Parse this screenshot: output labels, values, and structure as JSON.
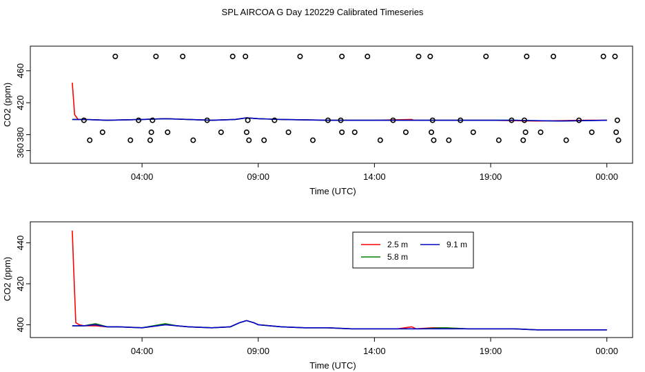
{
  "page": {
    "title": "SPL AIRCOA G  Day 120229  Calibrated Timeseries"
  },
  "chart_data": [
    {
      "id": "top",
      "type": "line",
      "title": "",
      "xlabel": "Time (UTC)",
      "ylabel": "CO2 (ppm)",
      "xlim": [
        0.1,
        24.2
      ],
      "ylim": [
        350,
        485
      ],
      "xticks": [
        4,
        9,
        14,
        19,
        24
      ],
      "xtick_labels": [
        "04:00",
        "09:00",
        "14:00",
        "19:00",
        "00:00"
      ],
      "yticks": [
        360,
        380,
        420,
        460
      ],
      "ytick_labels": [
        "360",
        "380",
        "420",
        "460"
      ],
      "series": [
        {
          "name": "2.5 m",
          "color": "#ff0000",
          "x": [
            1.0,
            1.1,
            1.25,
            1.5,
            2.5,
            4.0,
            5.0,
            6.0,
            7.0,
            8.0,
            8.5,
            9.0,
            10.0,
            12.0,
            14.0,
            15.6,
            15.7,
            15.8,
            17.0,
            19.0,
            21.0,
            23.0,
            24.0
          ],
          "y": [
            445,
            405,
            399,
            399,
            398,
            399,
            400,
            399,
            398,
            399,
            401,
            400,
            399,
            398,
            398,
            399,
            398,
            398,
            398,
            398,
            397,
            398,
            398
          ]
        },
        {
          "name": "5.8 m",
          "color": "#008000",
          "x": [
            1.0,
            1.5,
            2.5,
            4.0,
            5.0,
            6.0,
            7.0,
            8.0,
            8.5,
            9.0,
            10.0,
            12.0,
            14.0,
            16.0,
            18.0,
            20.0,
            22.0,
            24.0
          ],
          "y": [
            399,
            399,
            398,
            399,
            400,
            399,
            398,
            399,
            401,
            400,
            399,
            398,
            398,
            398,
            398,
            398,
            397,
            398
          ]
        },
        {
          "name": "9.1 m",
          "color": "#0000cc",
          "x": [
            1.0,
            1.5,
            2.5,
            4.0,
            5.0,
            6.0,
            7.0,
            8.0,
            8.5,
            9.0,
            10.0,
            12.0,
            14.0,
            16.0,
            18.0,
            20.0,
            22.0,
            24.0
          ],
          "y": [
            399,
            399,
            398,
            399,
            400,
            399,
            398,
            399,
            401,
            400,
            399,
            398,
            398,
            398,
            398,
            398,
            397,
            398
          ]
        }
      ],
      "markers": [
        {
          "x": 1.5,
          "y": 398
        },
        {
          "x": 1.75,
          "y": 373
        },
        {
          "x": 2.3,
          "y": 383
        },
        {
          "x": 2.85,
          "y": 478
        },
        {
          "x": 3.5,
          "y": 373
        },
        {
          "x": 3.85,
          "y": 398
        },
        {
          "x": 4.35,
          "y": 373
        },
        {
          "x": 4.4,
          "y": 383
        },
        {
          "x": 4.45,
          "y": 398
        },
        {
          "x": 4.6,
          "y": 478
        },
        {
          "x": 5.1,
          "y": 383
        },
        {
          "x": 5.75,
          "y": 478
        },
        {
          "x": 6.2,
          "y": 373
        },
        {
          "x": 6.8,
          "y": 398
        },
        {
          "x": 7.4,
          "y": 383
        },
        {
          "x": 7.9,
          "y": 478
        },
        {
          "x": 8.45,
          "y": 478
        },
        {
          "x": 8.5,
          "y": 383
        },
        {
          "x": 8.55,
          "y": 398
        },
        {
          "x": 8.6,
          "y": 373
        },
        {
          "x": 9.25,
          "y": 373
        },
        {
          "x": 9.7,
          "y": 398
        },
        {
          "x": 10.3,
          "y": 383
        },
        {
          "x": 10.8,
          "y": 478
        },
        {
          "x": 11.35,
          "y": 373
        },
        {
          "x": 12.0,
          "y": 398
        },
        {
          "x": 12.55,
          "y": 398
        },
        {
          "x": 12.6,
          "y": 383
        },
        {
          "x": 12.6,
          "y": 478
        },
        {
          "x": 13.15,
          "y": 383
        },
        {
          "x": 13.7,
          "y": 478
        },
        {
          "x": 14.25,
          "y": 373
        },
        {
          "x": 14.8,
          "y": 398
        },
        {
          "x": 15.35,
          "y": 383
        },
        {
          "x": 15.9,
          "y": 478
        },
        {
          "x": 16.4,
          "y": 478
        },
        {
          "x": 16.45,
          "y": 383
        },
        {
          "x": 16.5,
          "y": 398
        },
        {
          "x": 16.55,
          "y": 373
        },
        {
          "x": 17.2,
          "y": 373
        },
        {
          "x": 17.7,
          "y": 398
        },
        {
          "x": 18.25,
          "y": 383
        },
        {
          "x": 18.8,
          "y": 478
        },
        {
          "x": 19.35,
          "y": 373
        },
        {
          "x": 19.9,
          "y": 398
        },
        {
          "x": 20.4,
          "y": 373
        },
        {
          "x": 20.45,
          "y": 398
        },
        {
          "x": 20.5,
          "y": 383
        },
        {
          "x": 20.55,
          "y": 478
        },
        {
          "x": 21.15,
          "y": 383
        },
        {
          "x": 21.7,
          "y": 478
        },
        {
          "x": 22.25,
          "y": 373
        },
        {
          "x": 22.8,
          "y": 398
        },
        {
          "x": 23.35,
          "y": 383
        },
        {
          "x": 23.85,
          "y": 478
        },
        {
          "x": 24.35,
          "y": 478
        },
        {
          "x": 24.4,
          "y": 383
        },
        {
          "x": 24.45,
          "y": 398
        },
        {
          "x": 24.5,
          "y": 373
        }
      ]
    },
    {
      "id": "bottom",
      "type": "line",
      "title": "",
      "xlabel": "Time (UTC)",
      "ylabel": "CO2 (ppm)",
      "xlim": [
        0.1,
        24.2
      ],
      "ylim": [
        396,
        448
      ],
      "xticks": [
        4,
        9,
        14,
        19,
        24
      ],
      "xtick_labels": [
        "04:00",
        "09:00",
        "14:00",
        "19:00",
        "00:00"
      ],
      "yticks": [
        400,
        420,
        440
      ],
      "ytick_labels": [
        "400",
        "420",
        "440"
      ],
      "legend": {
        "placement": "top-center",
        "entries": [
          {
            "label": "2.5 m",
            "color": "#ff0000"
          },
          {
            "label": "5.8 m",
            "color": "#008000"
          },
          {
            "label": "9.1 m",
            "color": "#0000cc"
          }
        ]
      },
      "series": [
        {
          "name": "2.5 m",
          "color": "#ff0000",
          "x": [
            1.0,
            1.05,
            1.15,
            1.3,
            1.5,
            2.0,
            2.5,
            3.0,
            4.0,
            5.0,
            5.5,
            6.0,
            7.0,
            7.8,
            8.2,
            8.5,
            8.8,
            9.0,
            9.5,
            10.0,
            11.0,
            12.0,
            13.0,
            14.0,
            15.0,
            15.6,
            15.7,
            15.8,
            16.5,
            17.0,
            18.0,
            19.0,
            20.0,
            21.0,
            22.0,
            23.0,
            24.0
          ],
          "y": [
            446,
            430,
            401,
            400,
            399.5,
            399.5,
            399,
            399,
            398.5,
            400,
            399.5,
            399,
            398.5,
            399,
            401,
            402,
            401,
            400,
            399.5,
            399,
            398.5,
            398.5,
            398,
            398,
            398,
            399,
            398.5,
            398,
            398.5,
            398.5,
            398,
            398,
            398,
            397.5,
            397.5,
            397.5,
            397.5
          ]
        },
        {
          "name": "5.8 m",
          "color": "#008000",
          "x": [
            1.0,
            1.5,
            2.0,
            2.5,
            3.0,
            4.0,
            5.0,
            5.5,
            6.0,
            7.0,
            7.8,
            8.2,
            8.5,
            8.8,
            9.0,
            9.5,
            10.0,
            11.0,
            12.0,
            13.0,
            14.0,
            15.0,
            16.0,
            17.0,
            18.0,
            19.0,
            20.0,
            21.0,
            22.0,
            23.0,
            24.0
          ],
          "y": [
            399.5,
            399.5,
            400.5,
            399,
            399,
            398.5,
            400.5,
            399.5,
            399,
            398.5,
            399,
            401,
            402,
            401,
            400,
            399.5,
            399,
            398.5,
            398.5,
            398,
            398,
            398,
            398,
            398.5,
            398,
            398,
            398,
            397.5,
            397.5,
            397.5,
            397.5
          ]
        },
        {
          "name": "9.1 m",
          "color": "#0000cc",
          "x": [
            1.0,
            1.5,
            2.0,
            2.5,
            3.0,
            4.0,
            5.0,
            5.5,
            6.0,
            7.0,
            7.8,
            8.2,
            8.5,
            8.8,
            9.0,
            9.5,
            10.0,
            11.0,
            12.0,
            13.0,
            14.0,
            15.0,
            16.0,
            17.0,
            18.0,
            19.0,
            20.0,
            21.0,
            22.0,
            23.0,
            24.0
          ],
          "y": [
            399.5,
            399.5,
            400,
            399,
            399,
            398.5,
            400,
            399.5,
            399,
            398.5,
            399,
            401,
            402,
            401,
            400,
            399.5,
            399,
            398.5,
            398.5,
            398,
            398,
            398,
            398,
            398,
            398,
            398,
            398,
            397.5,
            397.5,
            397.5,
            397.5
          ]
        }
      ]
    }
  ]
}
